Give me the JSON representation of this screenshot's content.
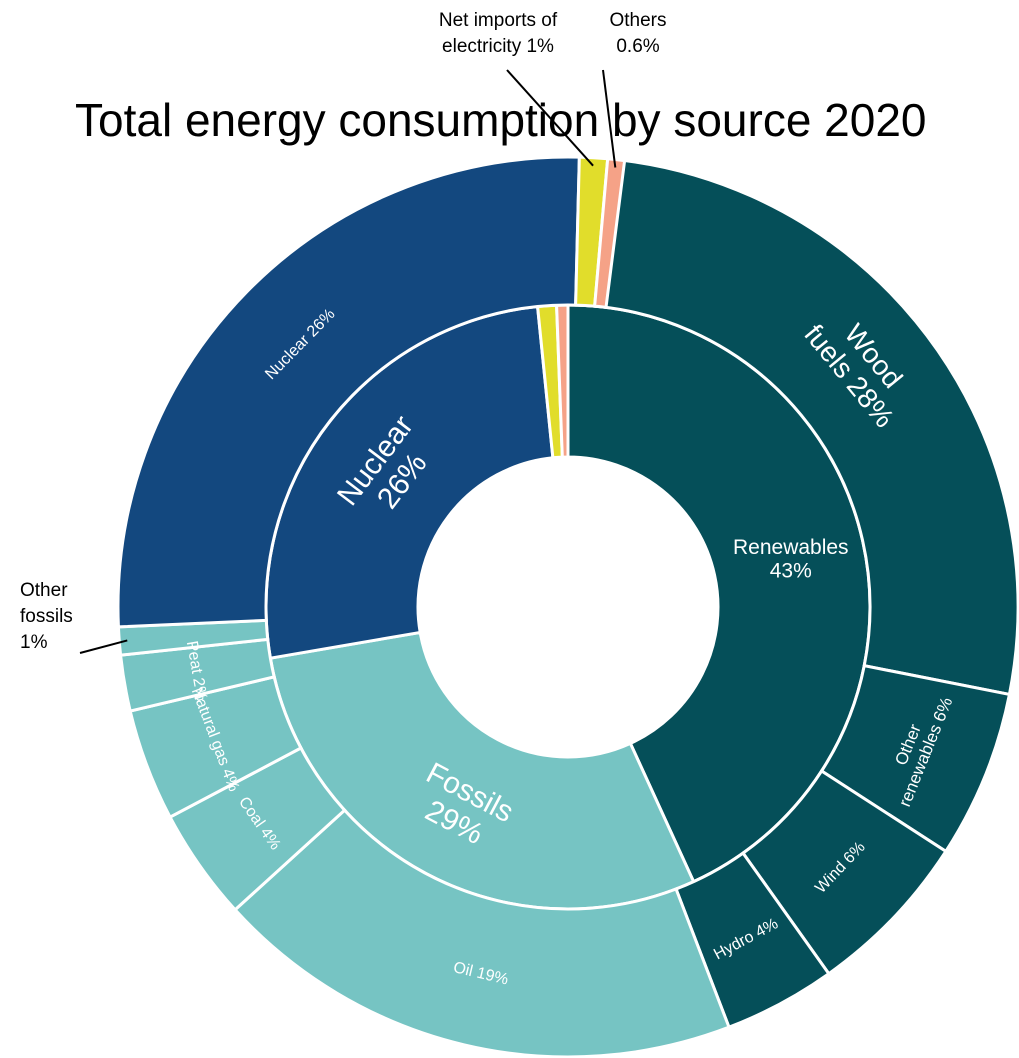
{
  "chart_data": {
    "type": "sunburst",
    "title": "Total energy consumption by source 2020",
    "unit": "%",
    "inner_ring": [
      {
        "name": "Renewables",
        "value": 43,
        "label": "Renewables 43%",
        "color": "#054f59"
      },
      {
        "name": "Fossils",
        "value": 29,
        "label": "Fossils 29%",
        "color": "#76c4c3"
      },
      {
        "name": "Nuclear",
        "value": 26,
        "label": "Nuclear 26%",
        "color": "#13487f"
      },
      {
        "name": "Net imports of electricity",
        "value": 1,
        "label": "",
        "color": "#e1dd2b"
      },
      {
        "name": "Others",
        "value": 0.6,
        "label": "",
        "color": "#f5a287"
      }
    ],
    "outer_ring": [
      {
        "name": "Wood fuels",
        "parent": "Renewables",
        "value": 28,
        "label": "Wood fuels 28%"
      },
      {
        "name": "Other renewables",
        "parent": "Renewables",
        "value": 6,
        "label": "Other renewables 6%"
      },
      {
        "name": "Wind",
        "parent": "Renewables",
        "value": 6,
        "label": "Wind 6%"
      },
      {
        "name": "Hydro",
        "parent": "Renewables",
        "value": 4,
        "label": "Hydro 4%"
      },
      {
        "name": "Oil",
        "parent": "Fossils",
        "value": 19,
        "label": "Oil 19%"
      },
      {
        "name": "Coal",
        "parent": "Fossils",
        "value": 4,
        "label": "Coal 4%"
      },
      {
        "name": "Natural gas",
        "parent": "Fossils",
        "value": 4,
        "label": "Natural gas 4%"
      },
      {
        "name": "Peat",
        "parent": "Fossils",
        "value": 2,
        "label": "Peat 2%"
      },
      {
        "name": "Other fossils",
        "parent": "Fossils",
        "value": 1,
        "label": ""
      },
      {
        "name": "Nuclear",
        "parent": "Nuclear",
        "value": 26,
        "label": "Nuclear 26%"
      },
      {
        "name": "Net imports of electricity",
        "parent": "Net imports of electricity",
        "value": 1,
        "label": ""
      },
      {
        "name": "Others",
        "parent": "Others",
        "value": 0.6,
        "label": ""
      }
    ],
    "callouts": [
      {
        "target": "Other fossils",
        "lines": [
          "Other",
          "fossils",
          "1%"
        ]
      },
      {
        "target": "Net imports of electricity",
        "lines": [
          "Net imports of",
          "electricity 1%"
        ]
      },
      {
        "target": "Others",
        "lines": [
          "Others",
          "0.6%"
        ]
      }
    ]
  }
}
